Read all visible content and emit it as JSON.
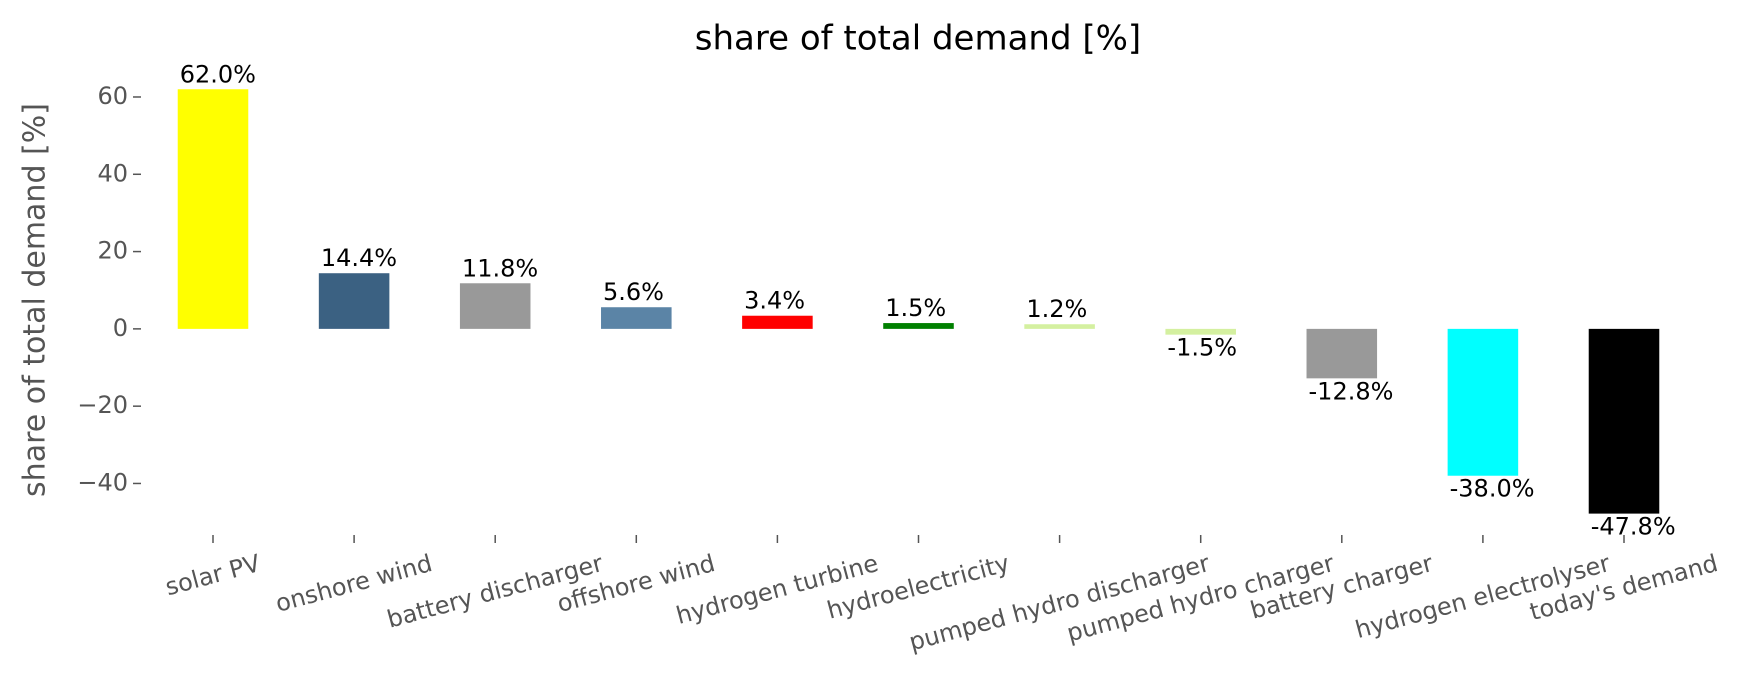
{
  "chart_data": {
    "type": "bar",
    "title": "share of total demand [%]",
    "y_label": "share of total demand [%]",
    "categories": [
      "solar PV",
      "onshore wind",
      "battery discharger",
      "offshore wind",
      "hydrogen turbine",
      "hydroelectricity",
      "pumped hydro discharger",
      "pumped hydro charger",
      "battery charger",
      "hydrogen electrolyser",
      "today's demand"
    ],
    "values": [
      62.0,
      14.4,
      11.8,
      5.6,
      3.4,
      1.5,
      1.2,
      -1.5,
      -12.8,
      -38.0,
      -47.8
    ],
    "value_labels": [
      "62.0%",
      "14.4%",
      "11.8%",
      "5.6%",
      "3.4%",
      "1.5%",
      "1.2%",
      "-1.5%",
      "-12.8%",
      "-38.0%",
      "-47.8%"
    ],
    "colors": [
      "#ffff00",
      "#3b6182",
      "#999999",
      "#5b84a6",
      "#ff0000",
      "#008000",
      "#d4f0a0",
      "#d4f0a0",
      "#999999",
      "#00ffff",
      "#000000"
    ],
    "ylim": [
      -52.3,
      67.5
    ],
    "yticks": [
      {
        "value": -40,
        "label": "−40"
      },
      {
        "value": -20,
        "label": "−20"
      },
      0,
      20,
      40,
      60
    ],
    "grid": false
  }
}
